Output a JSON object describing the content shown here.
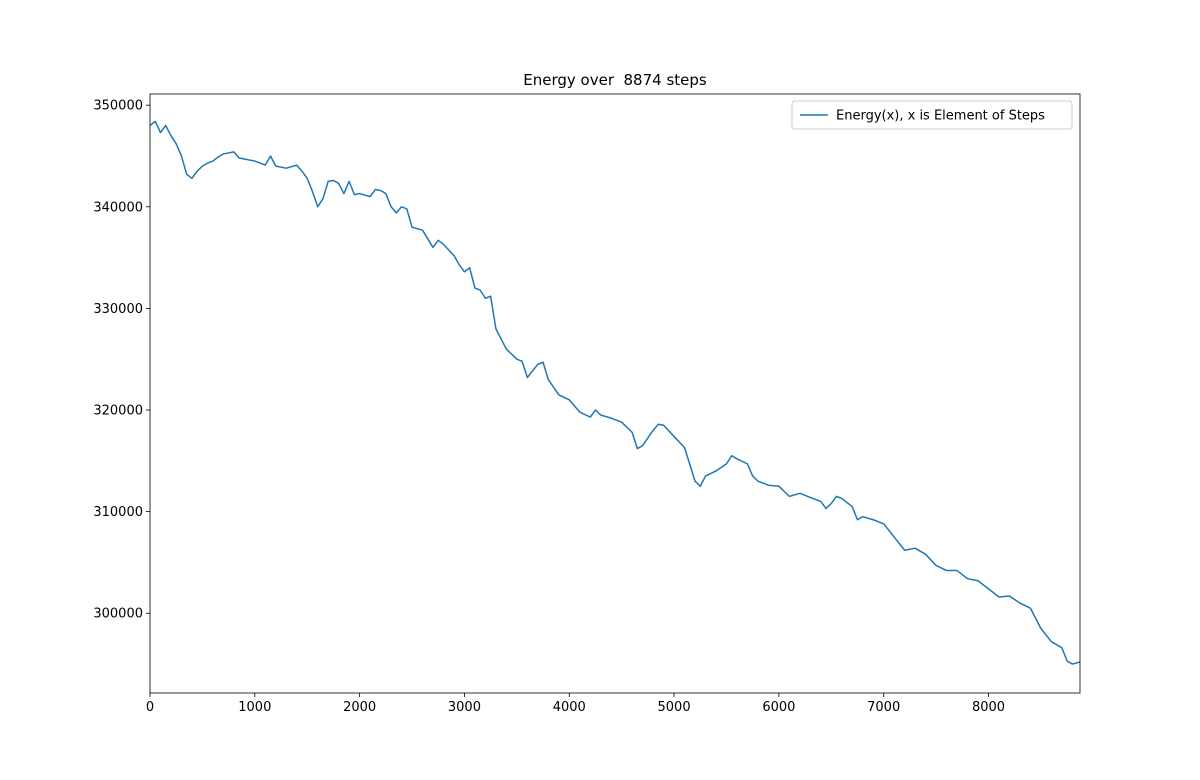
{
  "chart_data": {
    "type": "line",
    "title": "Energy over  8874 steps",
    "x": [
      0,
      50,
      100,
      150,
      200,
      250,
      300,
      350,
      400,
      450,
      500,
      550,
      600,
      650,
      700,
      750,
      800,
      850,
      900,
      1000,
      1050,
      1100,
      1150,
      1200,
      1300,
      1400,
      1450,
      1500,
      1550,
      1600,
      1650,
      1700,
      1750,
      1800,
      1850,
      1900,
      1950,
      2000,
      2100,
      2150,
      2200,
      2250,
      2300,
      2350,
      2400,
      2450,
      2500,
      2600,
      2700,
      2750,
      2800,
      2900,
      2950,
      3000,
      3050,
      3100,
      3150,
      3200,
      3250,
      3300,
      3400,
      3500,
      3550,
      3600,
      3700,
      3750,
      3800,
      3900,
      4000,
      4100,
      4200,
      4250,
      4300,
      4400,
      4500,
      4600,
      4650,
      4700,
      4800,
      4850,
      4900,
      5000,
      5100,
      5200,
      5250,
      5300,
      5400,
      5500,
      5550,
      5600,
      5700,
      5750,
      5800,
      5900,
      6000,
      6100,
      6200,
      6300,
      6400,
      6450,
      6500,
      6550,
      6600,
      6700,
      6750,
      6800,
      6900,
      7000,
      7100,
      7200,
      7300,
      7400,
      7500,
      7600,
      7700,
      7800,
      7900,
      8000,
      8100,
      8200,
      8300,
      8400,
      8500,
      8600,
      8700,
      8750,
      8800,
      8873
    ],
    "series": [
      {
        "name": "Energy(x), x is Element of Steps",
        "color": "#1f77b4",
        "values": [
          348000,
          348400,
          347300,
          348000,
          347000,
          346200,
          345000,
          343200,
          342800,
          343500,
          344000,
          344300,
          344500,
          344900,
          345200,
          345300,
          345400,
          344800,
          344700,
          344500,
          344300,
          344100,
          345000,
          344000,
          343800,
          344100,
          343500,
          342800,
          341500,
          340000,
          340800,
          342500,
          342600,
          342300,
          341300,
          342500,
          341200,
          341300,
          341000,
          341700,
          341600,
          341300,
          340000,
          339400,
          340000,
          339800,
          338000,
          337700,
          336000,
          336700,
          336300,
          335200,
          334300,
          333600,
          334000,
          332000,
          331800,
          331000,
          331200,
          328000,
          326000,
          325000,
          324800,
          323200,
          324500,
          324700,
          323000,
          321500,
          321000,
          319800,
          319300,
          320000,
          319500,
          319200,
          318800,
          317800,
          316200,
          316500,
          318000,
          318600,
          318500,
          317400,
          316300,
          313000,
          312500,
          313500,
          314000,
          314700,
          315500,
          315200,
          314700,
          313500,
          313000,
          312600,
          312500,
          311500,
          311800,
          311400,
          311000,
          310300,
          310800,
          311500,
          311300,
          310500,
          309200,
          309500,
          309200,
          308800,
          307500,
          306200,
          306400,
          305800,
          304700,
          304200,
          304200,
          303400,
          303200,
          302400,
          301600,
          301700,
          301000,
          300500,
          298500,
          297200,
          296600,
          295300,
          295000,
          295200
        ]
      }
    ],
    "xlim": [
      0,
      8873
    ],
    "ylim": [
      292150,
      351100
    ],
    "xticks": [
      0,
      1000,
      2000,
      3000,
      4000,
      5000,
      6000,
      7000,
      8000
    ],
    "yticks": [
      300000,
      310000,
      320000,
      330000,
      340000,
      350000
    ],
    "legend": "upper right"
  }
}
